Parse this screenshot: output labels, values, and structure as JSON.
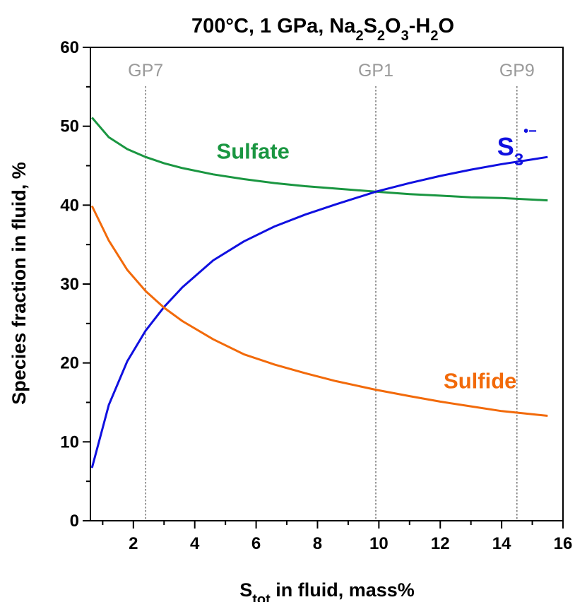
{
  "chart_data": {
    "type": "line",
    "title": {
      "prefix": "700°C, 1 GPa, Na",
      "parts": [
        {
          "text": "2",
          "sub": true
        },
        {
          "text": "S",
          "sub": false
        },
        {
          "text": "2",
          "sub": true
        },
        {
          "text": "O",
          "sub": false
        },
        {
          "text": "3",
          "sub": true
        },
        {
          "text": "-H",
          "sub": false
        },
        {
          "text": "2",
          "sub": true
        },
        {
          "text": "O",
          "sub": false
        }
      ]
    },
    "xlabel": {
      "main": "S",
      "sub": "tot",
      "rest": " in fluid, mass%"
    },
    "ylabel": "Species fraction in fluid, %",
    "xlim": [
      0.6,
      16
    ],
    "ylim": [
      0,
      60
    ],
    "x_ticks": [
      2,
      4,
      6,
      8,
      10,
      12,
      14,
      16
    ],
    "y_ticks": [
      0,
      10,
      20,
      30,
      40,
      50,
      60
    ],
    "grid": false,
    "legend": "none",
    "reference_lines": [
      {
        "label": "GP7",
        "x": 2.4
      },
      {
        "label": "GP1",
        "x": 9.9
      },
      {
        "label": "GP9",
        "x": 14.5
      }
    ],
    "series": [
      {
        "key": "sulfate",
        "name": "Sulfate",
        "color": "#1a9641",
        "label_pos": {
          "x": 5.9,
          "y": 45.9
        },
        "x": [
          0.65,
          1.2,
          1.8,
          2.4,
          3.0,
          3.6,
          4.6,
          5.6,
          6.6,
          7.6,
          8.6,
          9.9,
          11.0,
          12.0,
          13.0,
          14.0,
          15.0,
          15.5
        ],
        "y": [
          51.1,
          48.6,
          47.1,
          46.1,
          45.3,
          44.7,
          43.9,
          43.3,
          42.8,
          42.4,
          42.1,
          41.7,
          41.4,
          41.2,
          41.0,
          40.9,
          40.7,
          40.6
        ]
      },
      {
        "key": "s3",
        "name": "S",
        "name_sub": "3",
        "name_sup": "•−",
        "color": "#1010e0",
        "label_pos": {
          "x": 14.5,
          "y": 46.3
        },
        "x": [
          0.65,
          1.2,
          1.8,
          2.4,
          3.0,
          3.6,
          4.6,
          5.6,
          6.6,
          7.6,
          8.6,
          9.9,
          11.0,
          12.0,
          13.0,
          14.0,
          15.0,
          15.5
        ],
        "y": [
          6.7,
          14.7,
          20.2,
          24.1,
          27.1,
          29.6,
          33.0,
          35.4,
          37.3,
          38.8,
          40.1,
          41.7,
          42.8,
          43.7,
          44.5,
          45.2,
          45.8,
          46.1
        ]
      },
      {
        "key": "sulfide",
        "name": "Sulfide",
        "color": "#f26a0a",
        "label_pos": {
          "x": 13.3,
          "y": 16.8
        },
        "x": [
          0.65,
          1.2,
          1.8,
          2.4,
          3.0,
          3.6,
          4.6,
          5.6,
          6.6,
          7.6,
          8.6,
          9.9,
          11.0,
          12.0,
          13.0,
          14.0,
          15.0,
          15.5
        ],
        "y": [
          39.9,
          35.5,
          31.8,
          29.1,
          27.0,
          25.3,
          23.0,
          21.1,
          19.8,
          18.7,
          17.7,
          16.6,
          15.8,
          15.1,
          14.5,
          13.9,
          13.5,
          13.3
        ]
      }
    ]
  }
}
